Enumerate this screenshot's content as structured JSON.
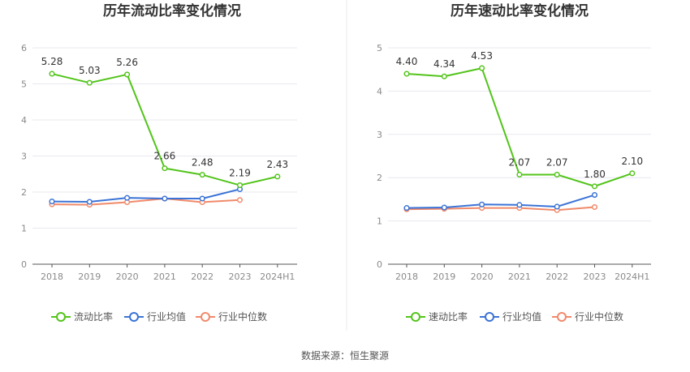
{
  "source_text": "数据来源：恒生聚源",
  "chart_data": [
    {
      "type": "line",
      "title": "历年流动比率变化情况",
      "categories": [
        "2018",
        "2019",
        "2020",
        "2021",
        "2022",
        "2023",
        "2024H1"
      ],
      "ylim": [
        0,
        6
      ],
      "yticks": [
        "0",
        "1",
        "2",
        "3",
        "4",
        "5",
        "6"
      ],
      "grid": true,
      "legend_position": "bottom",
      "series": [
        {
          "name": "流动比率",
          "color": "#52c41a",
          "values": [
            5.28,
            5.03,
            5.26,
            2.66,
            2.48,
            2.19,
            2.43
          ],
          "labels": [
            "5.28",
            "5.03",
            "5.26",
            "2.66",
            "2.48",
            "2.19",
            "2.43"
          ]
        },
        {
          "name": "行业均值",
          "color": "#3b73d6",
          "values": [
            1.74,
            1.73,
            1.84,
            1.82,
            1.82,
            2.08,
            null
          ]
        },
        {
          "name": "行业中位数",
          "color": "#f08a6a",
          "values": [
            1.66,
            1.65,
            1.72,
            1.82,
            1.72,
            1.78,
            null
          ]
        }
      ]
    },
    {
      "type": "line",
      "title": "历年速动比率变化情况",
      "categories": [
        "2018",
        "2019",
        "2020",
        "2021",
        "2022",
        "2023",
        "2024H1"
      ],
      "ylim": [
        0,
        5
      ],
      "yticks": [
        "0",
        "1",
        "2",
        "3",
        "4",
        "5"
      ],
      "grid": true,
      "legend_position": "bottom",
      "series": [
        {
          "name": "速动比率",
          "color": "#52c41a",
          "values": [
            4.4,
            4.34,
            4.53,
            2.07,
            2.07,
            1.8,
            2.1
          ],
          "labels": [
            "4.40",
            "4.34",
            "4.53",
            "2.07",
            "2.07",
            "1.80",
            "2.10"
          ]
        },
        {
          "name": "行业均值",
          "color": "#3b73d6",
          "values": [
            1.3,
            1.31,
            1.38,
            1.37,
            1.33,
            1.6,
            null
          ]
        },
        {
          "name": "行业中位数",
          "color": "#f08a6a",
          "values": [
            1.27,
            1.28,
            1.3,
            1.3,
            1.25,
            1.32,
            null
          ]
        }
      ]
    }
  ]
}
